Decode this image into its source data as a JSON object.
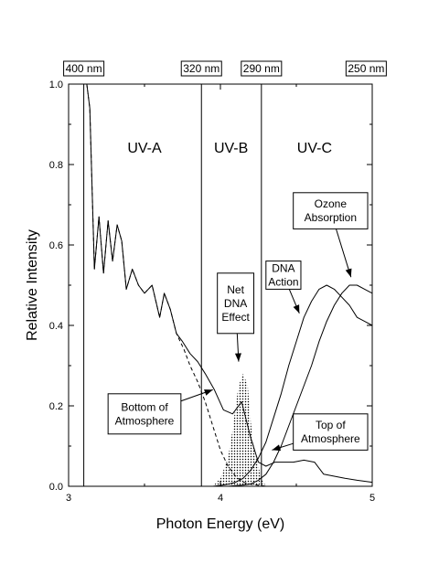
{
  "chart_data": {
    "type": "line",
    "xlabel": "Photon Energy (eV)",
    "ylabel": "Relative Intensity",
    "xlim": [
      3,
      5
    ],
    "ylim": [
      0,
      1
    ],
    "grid": false,
    "x_ticks": [
      {
        "value": 3,
        "label": "3"
      },
      {
        "value": 4,
        "label": "4"
      },
      {
        "value": 5,
        "label": "5"
      }
    ],
    "y_ticks": [
      {
        "value": 0.0,
        "label": "0.0"
      },
      {
        "value": 0.2,
        "label": "0.2"
      },
      {
        "value": 0.4,
        "label": "0.4"
      },
      {
        "value": 0.6,
        "label": "0.6"
      },
      {
        "value": 0.8,
        "label": "0.8"
      },
      {
        "value": 1.0,
        "label": "1.0"
      }
    ],
    "top_wavelength_labels": [
      {
        "x": 3.1,
        "label": "400 nm"
      },
      {
        "x": 3.875,
        "label": "320 nm"
      },
      {
        "x": 4.27,
        "label": "290 nm"
      },
      {
        "x": 4.96,
        "label": "250 nm"
      }
    ],
    "region_boundaries": [
      3.1,
      3.875,
      4.27
    ],
    "regions": [
      {
        "label": "UV-A",
        "x": 3.5,
        "y": 0.83
      },
      {
        "label": "UV-B",
        "x": 4.07,
        "y": 0.83
      },
      {
        "label": "UV-C",
        "x": 4.62,
        "y": 0.83
      }
    ],
    "series": [
      {
        "key": "top_of_atmosphere",
        "style": "solid",
        "x": [
          3.12,
          3.14,
          3.17,
          3.2,
          3.23,
          3.26,
          3.29,
          3.32,
          3.35,
          3.38,
          3.42,
          3.46,
          3.5,
          3.55,
          3.6,
          3.63,
          3.67,
          3.71,
          3.75,
          3.8,
          3.85,
          3.9,
          3.96,
          4.02,
          4.08,
          4.14,
          4.2,
          4.25,
          4.3,
          4.36,
          4.42,
          4.48,
          4.55,
          4.62,
          4.68,
          4.75,
          4.82,
          4.9,
          5.0
        ],
        "y": [
          1.0,
          0.94,
          0.54,
          0.67,
          0.53,
          0.66,
          0.56,
          0.65,
          0.61,
          0.49,
          0.54,
          0.5,
          0.48,
          0.5,
          0.42,
          0.48,
          0.44,
          0.38,
          0.36,
          0.33,
          0.31,
          0.28,
          0.24,
          0.19,
          0.18,
          0.21,
          0.12,
          0.06,
          0.05,
          0.06,
          0.06,
          0.06,
          0.065,
          0.06,
          0.03,
          0.025,
          0.02,
          0.015,
          0.01
        ]
      },
      {
        "key": "bottom_of_atmosphere",
        "style": "dashed",
        "x": [
          3.12,
          3.14,
          3.17,
          3.2,
          3.23,
          3.26,
          3.29,
          3.32,
          3.35,
          3.38,
          3.42,
          3.46,
          3.5,
          3.55,
          3.6,
          3.63,
          3.67,
          3.71,
          3.76,
          3.8,
          3.85,
          3.9,
          3.95,
          4.0,
          4.05,
          4.1,
          4.15,
          4.2,
          4.3,
          4.5,
          5.0
        ],
        "y": [
          1.0,
          0.94,
          0.54,
          0.67,
          0.53,
          0.66,
          0.56,
          0.65,
          0.61,
          0.49,
          0.54,
          0.5,
          0.48,
          0.5,
          0.42,
          0.48,
          0.44,
          0.38,
          0.34,
          0.3,
          0.26,
          0.21,
          0.15,
          0.09,
          0.05,
          0.025,
          0.01,
          0.005,
          0.0,
          0.0,
          0.0
        ]
      },
      {
        "key": "dna_action",
        "style": "solid",
        "x": [
          3.95,
          4.0,
          4.05,
          4.1,
          4.15,
          4.2,
          4.25,
          4.3,
          4.35,
          4.4,
          4.45,
          4.5,
          4.55,
          4.6,
          4.65,
          4.7,
          4.75,
          4.8,
          4.85,
          4.9,
          4.95,
          5.0
        ],
        "y": [
          0.0,
          0.002,
          0.005,
          0.01,
          0.02,
          0.04,
          0.07,
          0.11,
          0.17,
          0.23,
          0.3,
          0.36,
          0.42,
          0.46,
          0.49,
          0.5,
          0.49,
          0.47,
          0.45,
          0.42,
          0.41,
          0.4
        ]
      },
      {
        "key": "ozone_absorption",
        "style": "solid",
        "x": [
          3.95,
          4.05,
          4.15,
          4.2,
          4.25,
          4.3,
          4.35,
          4.4,
          4.45,
          4.5,
          4.55,
          4.6,
          4.65,
          4.7,
          4.75,
          4.8,
          4.85,
          4.9,
          4.95,
          5.0
        ],
        "y": [
          0.0,
          0.0,
          0.003,
          0.006,
          0.015,
          0.03,
          0.06,
          0.1,
          0.15,
          0.2,
          0.25,
          0.3,
          0.36,
          0.41,
          0.45,
          0.48,
          0.5,
          0.5,
          0.49,
          0.48
        ]
      },
      {
        "key": "net_dna_effect",
        "style": "dotted-fill",
        "x": [
          3.95,
          4.0,
          4.05,
          4.08,
          4.1,
          4.12,
          4.15,
          4.18,
          4.2,
          4.22,
          4.25,
          4.27,
          4.3
        ],
        "y": [
          0.0,
          0.02,
          0.07,
          0.14,
          0.2,
          0.25,
          0.28,
          0.25,
          0.16,
          0.1,
          0.05,
          0.02,
          0.0
        ]
      }
    ],
    "annotations": [
      {
        "lines": [
          "Ozone",
          "Absorption"
        ],
        "box": [
          4.48,
          0.64,
          4.97,
          0.73
        ],
        "arrow_to": [
          4.86,
          0.52
        ]
      },
      {
        "lines": [
          "DNA",
          "Action"
        ],
        "box": [
          4.3,
          0.49,
          4.53,
          0.56
        ],
        "arrow_to": [
          4.52,
          0.43
        ]
      },
      {
        "lines": [
          "Net",
          "DNA",
          "Effect"
        ],
        "box": [
          3.98,
          0.38,
          4.22,
          0.53
        ],
        "arrow_to": [
          4.12,
          0.31
        ]
      },
      {
        "lines": [
          "Bottom of",
          "Atmosphere"
        ],
        "box": [
          3.26,
          0.13,
          3.74,
          0.23
        ],
        "arrow_to": [
          3.95,
          0.24
        ]
      },
      {
        "lines": [
          "Top of",
          "Atmosphere"
        ],
        "box": [
          4.48,
          0.09,
          4.97,
          0.18
        ],
        "arrow_to": [
          4.34,
          0.09
        ]
      }
    ]
  }
}
